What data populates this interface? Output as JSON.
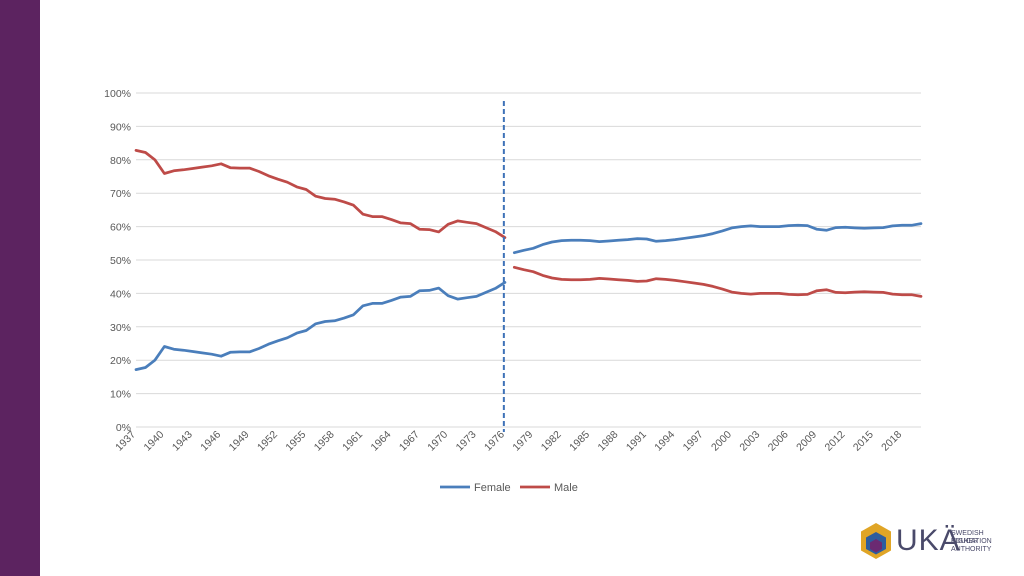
{
  "colors": {
    "sidebar": "#5c2360",
    "female": "#4a7ebb",
    "male": "#be4b48",
    "divider": "#3e72b8",
    "grid": "#d9d9d9",
    "logo_gold": "#e0a526",
    "logo_blue": "#2d5d9e",
    "logo_purple": "#6b2a72"
  },
  "logo": {
    "word": "UKÄ",
    "subtitle_lines": [
      "SWEDISH HIGHER",
      "EDUCATION",
      "AUTHORITY"
    ]
  },
  "chart_data": {
    "type": "line",
    "xlim": [
      1937,
      2020
    ],
    "ylim": [
      0,
      100
    ],
    "y_ticks": [
      "0%",
      "10%",
      "20%",
      "30%",
      "40%",
      "50%",
      "60%",
      "70%",
      "80%",
      "90%",
      "100%"
    ],
    "x_ticks": [
      "1937",
      "1940",
      "1943",
      "1946",
      "1949",
      "1952",
      "1955",
      "1958",
      "1961",
      "1964",
      "1967",
      "1970",
      "1973",
      "1976",
      "1979",
      "1982",
      "1985",
      "1988",
      "1991",
      "1994",
      "1997",
      "2000",
      "2003",
      "2006",
      "2009",
      "2012",
      "2015",
      "2018"
    ],
    "grid": true,
    "legend_position": "bottom",
    "divider_year": 1976,
    "series": [
      {
        "name": "Female",
        "segments": [
          {
            "x": [
              1937,
              1938,
              1939,
              1940,
              1941,
              1942,
              1943,
              1944,
              1945,
              1946,
              1947,
              1948,
              1949,
              1950,
              1951,
              1952,
              1953,
              1954,
              1955,
              1956,
              1957,
              1958,
              1959,
              1960,
              1961,
              1962,
              1963,
              1964,
              1965,
              1966,
              1967,
              1968,
              1969,
              1970,
              1971,
              1972,
              1973,
              1974,
              1975,
              1976
            ],
            "y": [
              17.2,
              17.8,
              20,
              24.1,
              23.3,
              23,
              22.6,
              22.2,
              21.8,
              21.2,
              22.4,
              22.5,
              22.5,
              23.5,
              24.8,
              25.8,
              26.7,
              28.1,
              28.9,
              30.9,
              31.6,
              31.8,
              32.6,
              33.6,
              36.3,
              37,
              37,
              37.9,
              38.9,
              39.1,
              40.8,
              40.9,
              41.6,
              39.3,
              38.3,
              38.7,
              39.1,
              40.3,
              41.5,
              43.3
            ]
          },
          {
            "x": [
              1977,
              1978,
              1979,
              1980,
              1981,
              1982,
              1983,
              1984,
              1985,
              1986,
              1987,
              1988,
              1989,
              1990,
              1991,
              1992,
              1993,
              1994,
              1995,
              1996,
              1997,
              1998,
              1999,
              2000,
              2001,
              2002,
              2003,
              2004,
              2005,
              2006,
              2007,
              2008,
              2009,
              2010,
              2011,
              2012,
              2013,
              2014,
              2015,
              2016,
              2017,
              2018,
              2019,
              2020
            ],
            "y": [
              52.2,
              52.9,
              53.5,
              54.6,
              55.4,
              55.8,
              55.9,
              55.9,
              55.8,
              55.5,
              55.7,
              55.9,
              56.1,
              56.4,
              56.3,
              55.6,
              55.8,
              56.1,
              56.5,
              56.9,
              57.3,
              57.9,
              58.7,
              59.6,
              60,
              60.2,
              60,
              60,
              60,
              60.3,
              60.4,
              60.3,
              59.2,
              58.9,
              59.7,
              59.8,
              59.6,
              59.5,
              59.6,
              59.7,
              60.2,
              60.4,
              60.4,
              60.9
            ]
          }
        ]
      },
      {
        "name": "Male",
        "segments": [
          {
            "x": [
              1937,
              1938,
              1939,
              1940,
              1941,
              1942,
              1943,
              1944,
              1945,
              1946,
              1947,
              1948,
              1949,
              1950,
              1951,
              1952,
              1953,
              1954,
              1955,
              1956,
              1957,
              1958,
              1959,
              1960,
              1961,
              1962,
              1963,
              1964,
              1965,
              1966,
              1967,
              1968,
              1969,
              1970,
              1971,
              1972,
              1973,
              1974,
              1975,
              1976
            ],
            "y": [
              82.8,
              82.2,
              80,
              75.9,
              76.7,
              77,
              77.4,
              77.8,
              78.2,
              78.8,
              77.6,
              77.5,
              77.5,
              76.5,
              75.2,
              74.2,
              73.3,
              71.9,
              71.1,
              69.1,
              68.4,
              68.2,
              67.4,
              66.4,
              63.7,
              63,
              63,
              62.1,
              61.1,
              60.9,
              59.2,
              59.1,
              58.4,
              60.7,
              61.7,
              61.3,
              60.9,
              59.7,
              58.5,
              56.7
            ]
          },
          {
            "x": [
              1977,
              1978,
              1979,
              1980,
              1981,
              1982,
              1983,
              1984,
              1985,
              1986,
              1987,
              1988,
              1989,
              1990,
              1991,
              1992,
              1993,
              1994,
              1995,
              1996,
              1997,
              1998,
              1999,
              2000,
              2001,
              2002,
              2003,
              2004,
              2005,
              2006,
              2007,
              2008,
              2009,
              2010,
              2011,
              2012,
              2013,
              2014,
              2015,
              2016,
              2017,
              2018,
              2019,
              2020
            ],
            "y": [
              47.8,
              47.1,
              46.5,
              45.4,
              44.6,
              44.2,
              44.1,
              44.1,
              44.2,
              44.5,
              44.3,
              44.1,
              43.9,
              43.6,
              43.7,
              44.4,
              44.2,
              43.9,
              43.5,
              43.1,
              42.7,
              42.1,
              41.3,
              40.4,
              40,
              39.8,
              40,
              40,
              40,
              39.7,
              39.6,
              39.7,
              40.8,
              41.1,
              40.3,
              40.2,
              40.4,
              40.5,
              40.4,
              40.3,
              39.8,
              39.6,
              39.6,
              39.1
            ]
          }
        ]
      }
    ]
  }
}
